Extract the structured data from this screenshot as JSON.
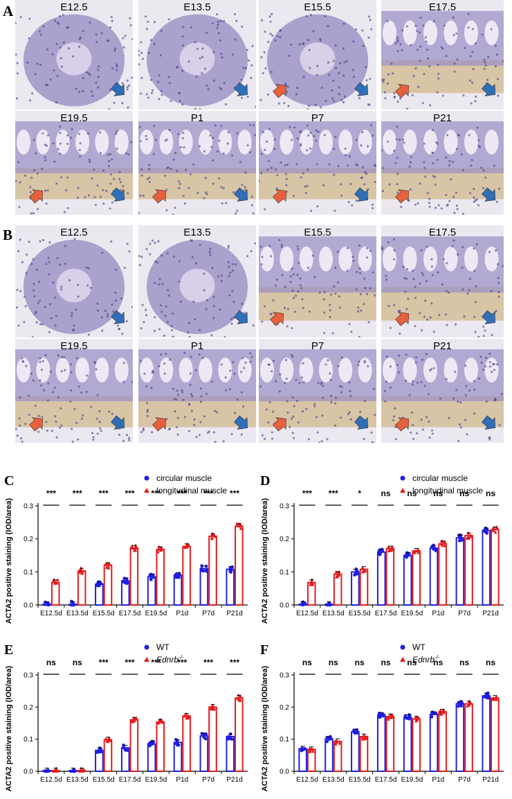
{
  "panels": {
    "A": {
      "letter": "A",
      "titles": [
        "E12.5",
        "E13.5",
        "E15.5",
        "E17.5",
        "E19.5",
        "P1",
        "P7",
        "P21"
      ]
    },
    "B": {
      "letter": "B",
      "titles": [
        "E12.5",
        "E13.5",
        "E15.5",
        "E17.5",
        "E19.5",
        "P1",
        "P7",
        "P21"
      ]
    }
  },
  "colors": {
    "circular": "#1f1fe0",
    "longitudinal": "#e31a1c",
    "arrow_blue": "#2e6fb8",
    "arrow_red": "#e8603c",
    "tissue": "#9a8fc4",
    "stain": "#c9a86a"
  },
  "chart_data": [
    {
      "id": "C",
      "letter": "C",
      "type": "bar",
      "categories": [
        "E12.5d",
        "E13.5d",
        "E15.5d",
        "E17.5d",
        "E19.5d",
        "P1d",
        "P7d",
        "P21d"
      ],
      "series": [
        {
          "name": "circular muscle",
          "marker": "circle",
          "values": [
            0.002,
            0.002,
            0.063,
            0.073,
            0.085,
            0.09,
            0.11,
            0.108
          ]
        },
        {
          "name": "longitudinal muscle",
          "marker": "triangle",
          "values": [
            0.068,
            0.103,
            0.12,
            0.172,
            0.168,
            0.177,
            0.208,
            0.238
          ]
        }
      ],
      "significance": [
        "***",
        "***",
        "***",
        "***",
        "***",
        "***",
        "***",
        "***"
      ],
      "ylabel": "ACTA2 positive staining (IOD/area)",
      "yticks": [
        "0.0",
        "0.1",
        "0.2",
        "0.3"
      ],
      "ylim": [
        0,
        0.3
      ]
    },
    {
      "id": "D",
      "letter": "D",
      "type": "bar",
      "categories": [
        "E12.5d",
        "E13.5d",
        "E15.5d",
        "E17.5d",
        "E19.5d",
        "P1d",
        "P7d",
        "P21d"
      ],
      "series": [
        {
          "name": "circular muscle",
          "marker": "circle",
          "values": [
            0.002,
            0.002,
            0.1,
            0.16,
            0.15,
            0.172,
            0.203,
            0.225
          ]
        },
        {
          "name": "longitudinal muscle",
          "marker": "triangle",
          "values": [
            0.068,
            0.093,
            0.108,
            0.17,
            0.163,
            0.185,
            0.21,
            0.228
          ]
        }
      ],
      "significance": [
        "***",
        "***",
        "*",
        "ns",
        "ns",
        "ns",
        "ns",
        "ns"
      ],
      "ylabel": "ACTA2 positive staining (IOD/area)",
      "yticks": [
        "0.0",
        "0.1",
        "0.2",
        "0.3"
      ],
      "ylim": [
        0,
        0.3
      ]
    },
    {
      "id": "E",
      "letter": "E",
      "type": "bar",
      "categories": [
        "E12.5d",
        "E13.5d",
        "E15.5d",
        "E17.5d",
        "E19.5d",
        "P1d",
        "P7d",
        "P21d"
      ],
      "series": [
        {
          "name": "WT",
          "marker": "circle",
          "values": [
            0.002,
            0.002,
            0.065,
            0.073,
            0.085,
            0.09,
            0.11,
            0.108
          ]
        },
        {
          "name": "Ednrb",
          "superscript": "-/-",
          "marker": "triangle",
          "values": [
            0.002,
            0.002,
            0.098,
            0.16,
            0.153,
            0.172,
            0.2,
            0.228
          ]
        }
      ],
      "significance": [
        "ns",
        "ns",
        "***",
        "***",
        "***",
        "***",
        "***",
        "***"
      ],
      "ylabel": "ACTA2 positive staining (IOD/area)",
      "yticks": [
        "0.0",
        "0.1",
        "0.2",
        "0.3"
      ],
      "ylim": [
        0,
        0.3
      ]
    },
    {
      "id": "F",
      "letter": "F",
      "type": "bar",
      "categories": [
        "E12.5d",
        "E13.5d",
        "E15.5d",
        "E17.5d",
        "E19.5d",
        "P1d",
        "P7d",
        "P21d"
      ],
      "series": [
        {
          "name": "WT",
          "marker": "circle",
          "values": [
            0.07,
            0.1,
            0.123,
            0.175,
            0.168,
            0.177,
            0.21,
            0.235
          ]
        },
        {
          "name": "Ednrb",
          "superscript": "-/-",
          "marker": "triangle",
          "values": [
            0.068,
            0.093,
            0.108,
            0.17,
            0.163,
            0.185,
            0.21,
            0.228
          ]
        }
      ],
      "significance": [
        "ns",
        "ns",
        "ns",
        "ns",
        "ns",
        "ns",
        "ns",
        "ns"
      ],
      "ylabel": "ACTA2 positive staining (IOD/area)",
      "yticks": [
        "0.0",
        "0.1",
        "0.2",
        "0.3"
      ],
      "ylim": [
        0,
        0.3
      ]
    }
  ]
}
